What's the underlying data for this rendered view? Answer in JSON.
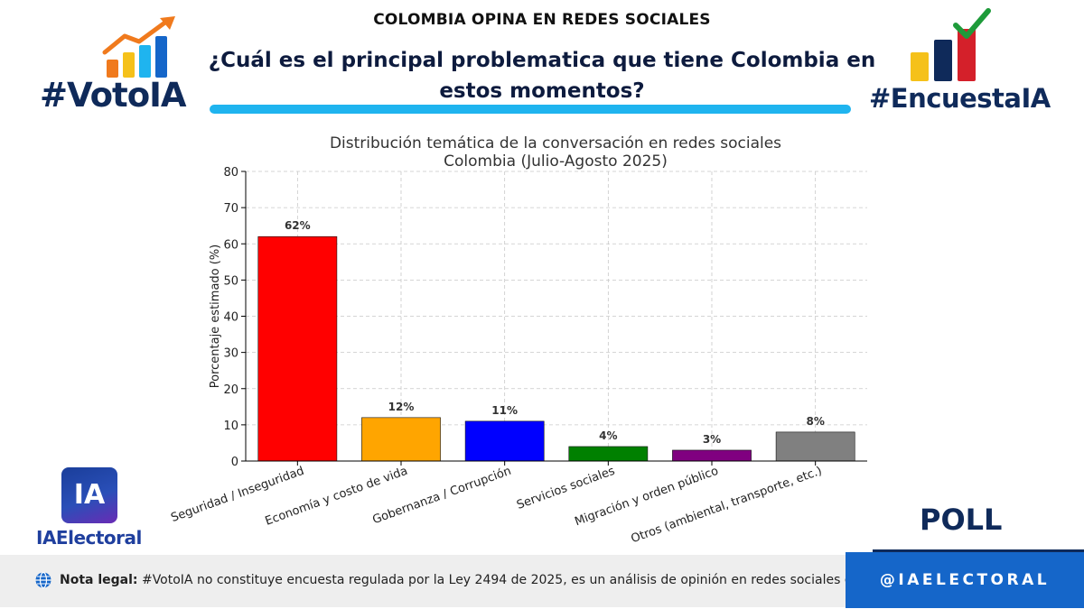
{
  "header": {
    "kicker": "COLOMBIA OPINA EN REDES SOCIALES",
    "question": "¿Cuál es el principal problematica que tiene Colombia en estos momentos?"
  },
  "brand": {
    "left_tag": "#VotoIA",
    "right_tag": "#EncuestaIA",
    "ia_box": "IA",
    "ia_name": "IAElectoral",
    "poll": "POLL",
    "handle": "@IAELECTORAL",
    "colors": {
      "navy": "#0f2a5a",
      "cyan": "#1fb4ef",
      "blue": "#1566c9",
      "orange": "#f07a1d",
      "yellow": "#f5c11a",
      "red": "#d4202a",
      "green": "#1e9b3a"
    }
  },
  "footer": {
    "label": "Nota legal:",
    "text": " #VotoIA no constituye encuesta regulada por la Ley 2494 de 2025, es un análisis de opinión en redes sociales con IA.",
    "icon": "globe-icon"
  },
  "chart_data": {
    "type": "bar",
    "title": "Distribución temática de la conversación en redes sociales",
    "subtitle": "Colombia (Julio-Agosto 2025)",
    "xlabel": "",
    "ylabel": "Porcentaje estimado (%)",
    "ylim": [
      0,
      80
    ],
    "yticks": [
      0,
      10,
      20,
      30,
      40,
      50,
      60,
      70,
      80
    ],
    "grid": true,
    "categories": [
      "Seguridad / Inseguridad",
      "Economía y costo de vida",
      "Gobernanza / Corrupción",
      "Servicios sociales",
      "Migración y orden público",
      "Otros (ambiental, transporte, etc.)"
    ],
    "values": [
      62,
      12,
      11,
      4,
      3,
      8
    ],
    "labels": [
      "62%",
      "12%",
      "11%",
      "4%",
      "3%",
      "8%"
    ],
    "colors": [
      "#ff0000",
      "#ffa500",
      "#0000ff",
      "#008000",
      "#800080",
      "#808080"
    ]
  }
}
